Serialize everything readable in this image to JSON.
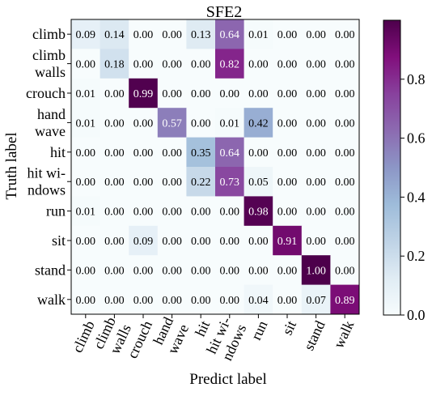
{
  "chart_data": {
    "type": "heatmap",
    "title": "SFE2",
    "xlabel": "Predict label",
    "ylabel": "Truth label",
    "row_labels": [
      [
        "climb"
      ],
      [
        "climb",
        "walls"
      ],
      [
        "crouch"
      ],
      [
        "hand",
        "wave"
      ],
      [
        "hit"
      ],
      [
        "hit wi-",
        "ndows"
      ],
      [
        "run"
      ],
      [
        "sit"
      ],
      [
        "stand"
      ],
      [
        "walk"
      ]
    ],
    "col_labels": [
      [
        "climb"
      ],
      [
        "climb",
        "walls"
      ],
      [
        "crouch"
      ],
      [
        "hand",
        "wave"
      ],
      [
        "hit"
      ],
      [
        "hit wi-",
        "ndows"
      ],
      [
        "run"
      ],
      [
        "sit"
      ],
      [
        "stand"
      ],
      [
        "walk"
      ]
    ],
    "values": [
      [
        0.09,
        0.14,
        0.0,
        0.0,
        0.13,
        0.64,
        0.01,
        0.0,
        0.0,
        0.0
      ],
      [
        0.0,
        0.18,
        0.0,
        0.0,
        0.0,
        0.82,
        0.0,
        0.0,
        0.0,
        0.0
      ],
      [
        0.01,
        0.0,
        0.99,
        0.0,
        0.0,
        0.0,
        0.0,
        0.0,
        0.0,
        0.0
      ],
      [
        0.01,
        0.0,
        0.0,
        0.57,
        0.0,
        0.01,
        0.42,
        0.0,
        0.0,
        0.0
      ],
      [
        0.0,
        0.0,
        0.0,
        0.0,
        0.35,
        0.64,
        0.0,
        0.0,
        0.0,
        0.0
      ],
      [
        0.0,
        0.0,
        0.0,
        0.0,
        0.22,
        0.73,
        0.05,
        0.0,
        0.0,
        0.0
      ],
      [
        0.01,
        0.0,
        0.0,
        0.0,
        0.0,
        0.0,
        0.98,
        0.0,
        0.0,
        0.0
      ],
      [
        0.0,
        0.0,
        0.09,
        0.0,
        0.0,
        0.0,
        0.0,
        0.91,
        0.0,
        0.0
      ],
      [
        0.0,
        0.0,
        0.0,
        0.0,
        0.0,
        0.0,
        0.0,
        0.0,
        1.0,
        0.0
      ],
      [
        0.0,
        0.0,
        0.0,
        0.0,
        0.0,
        0.0,
        0.04,
        0.0,
        0.07,
        0.89
      ]
    ],
    "colorbar": {
      "colormap": "BuPu",
      "range": [
        0.0,
        1.0
      ],
      "ticks": [
        "0.0",
        "0.2",
        "0.4",
        "0.6",
        "0.8"
      ],
      "tick_values": [
        0.0,
        0.2,
        0.4,
        0.6,
        0.8
      ]
    },
    "grid": false
  }
}
